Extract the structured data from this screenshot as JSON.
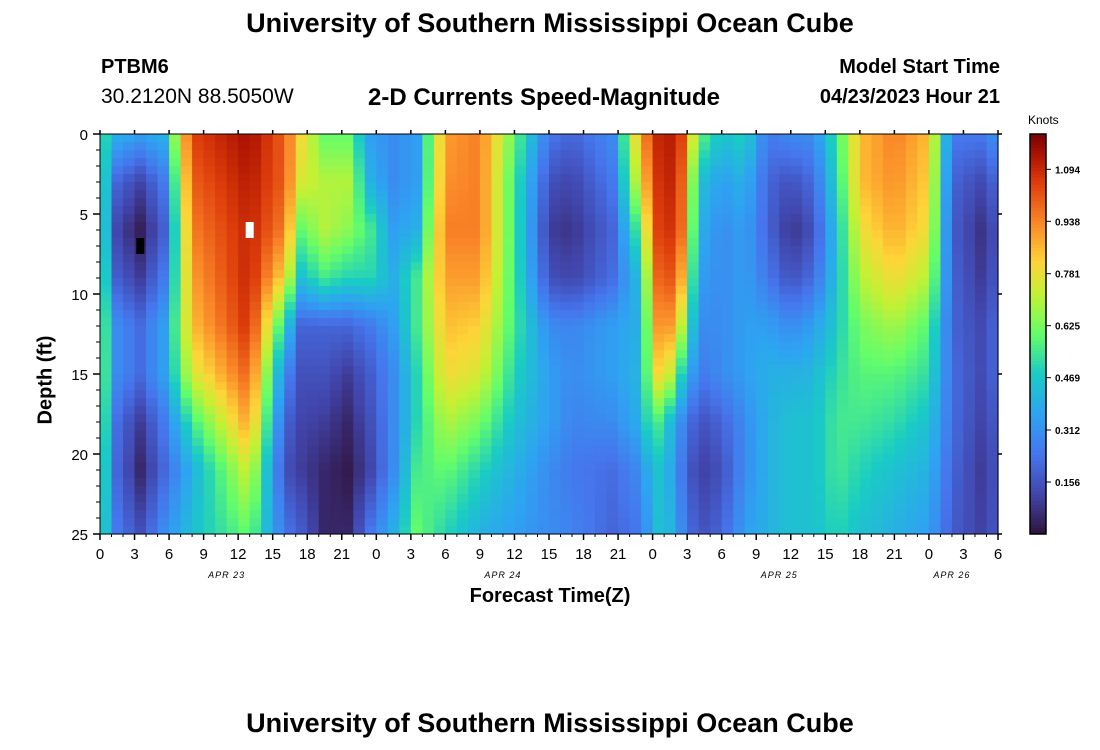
{
  "header": {
    "title": "University of Southern Mississippi Ocean Cube",
    "station": "PTBM6",
    "coords": "30.2120N  88.5050W",
    "subtitle": "2-D Currents Speed-Magnitude",
    "start_label": "Model Start Time",
    "start_value": "04/23/2023 Hour 21"
  },
  "footer": {
    "title": "University of Southern Mississippi Ocean Cube"
  },
  "chart_data": {
    "type": "heatmap",
    "title": "2-D Currents Speed-Magnitude",
    "xlabel": "Forecast Time(Z)",
    "ylabel": "Depth (ft)",
    "xlim": [
      0,
      78
    ],
    "ylim": [
      0,
      25
    ],
    "x_ticks": [
      0,
      3,
      6,
      9,
      12,
      15,
      18,
      21,
      24,
      27,
      30,
      33,
      36,
      39,
      42,
      45,
      48,
      51,
      54,
      57,
      60,
      63,
      66,
      69,
      72,
      75,
      78
    ],
    "x_tick_labels": [
      "0",
      "3",
      "6",
      "9",
      "12",
      "15",
      "18",
      "21",
      "0",
      "3",
      "6",
      "9",
      "12",
      "15",
      "18",
      "21",
      "0",
      "3",
      "6",
      "9",
      "12",
      "15",
      "18",
      "21",
      "0",
      "3",
      "6"
    ],
    "day_labels": [
      {
        "hour": 11,
        "label": "APR 23"
      },
      {
        "hour": 35,
        "label": "APR 24"
      },
      {
        "hour": 59,
        "label": "APR 25"
      },
      {
        "hour": 74,
        "label": "APR 26"
      }
    ],
    "y_ticks": [
      0,
      5,
      10,
      15,
      20,
      25
    ],
    "y_tick_labels": [
      "0",
      "5",
      "10",
      "15",
      "20",
      "25"
    ],
    "colorbar": {
      "unit": "Knots",
      "ticks": [
        0.156,
        0.312,
        0.469,
        0.625,
        0.781,
        0.938,
        1.094
      ],
      "tick_labels": [
        "0.156",
        "0.312",
        "0.469",
        "0.625",
        "0.781",
        "0.938",
        "1.094"
      ],
      "range": [
        0,
        1.2
      ]
    },
    "field": {
      "times": [
        0,
        1.5,
        3.5,
        5.5,
        8,
        13,
        16,
        17.5,
        19.5,
        21.5,
        23.5,
        25.5,
        27.5,
        30,
        33,
        36,
        39,
        41,
        44.5,
        47,
        48,
        49,
        50.5,
        52,
        54,
        56,
        58,
        60,
        62,
        64,
        66,
        69,
        72,
        74,
        77,
        78
      ],
      "depths": [
        0,
        3,
        6,
        9,
        12,
        15,
        18,
        21,
        25
      ],
      "speeds": [
        [
          0.55,
          0.58,
          0.6,
          0.62,
          0.64,
          0.65,
          0.64,
          0.6,
          0.55
        ],
        [
          0.4,
          0.2,
          0.12,
          0.18,
          0.3,
          0.3,
          0.22,
          0.2,
          0.25
        ],
        [
          0.35,
          0.12,
          0.03,
          0.1,
          0.22,
          0.22,
          0.1,
          0.05,
          0.15
        ],
        [
          0.4,
          0.25,
          0.18,
          0.25,
          0.35,
          0.35,
          0.25,
          0.2,
          0.3
        ],
        [
          1.05,
          1.0,
          0.95,
          0.9,
          0.85,
          0.75,
          0.55,
          0.4,
          0.45
        ],
        [
          1.15,
          1.12,
          1.1,
          1.1,
          1.08,
          1.0,
          0.9,
          0.75,
          0.6
        ],
        [
          1.0,
          1.0,
          0.95,
          0.8,
          0.5,
          0.3,
          0.2,
          0.15,
          0.25
        ],
        [
          0.8,
          0.75,
          0.6,
          0.45,
          0.2,
          0.15,
          0.12,
          0.1,
          0.18
        ],
        [
          0.6,
          0.7,
          0.7,
          0.55,
          0.2,
          0.15,
          0.1,
          0.05,
          0.05
        ],
        [
          0.6,
          0.7,
          0.65,
          0.5,
          0.2,
          0.1,
          0.05,
          0.02,
          0.05
        ],
        [
          0.35,
          0.4,
          0.55,
          0.5,
          0.25,
          0.18,
          0.15,
          0.12,
          0.25
        ],
        [
          0.3,
          0.3,
          0.35,
          0.4,
          0.35,
          0.3,
          0.3,
          0.3,
          0.4
        ],
        [
          0.35,
          0.35,
          0.4,
          0.55,
          0.55,
          0.5,
          0.5,
          0.55,
          0.6
        ],
        [
          0.9,
          0.92,
          0.95,
          0.9,
          0.85,
          0.8,
          0.7,
          0.6,
          0.5
        ],
        [
          0.95,
          0.95,
          0.95,
          0.9,
          0.82,
          0.75,
          0.62,
          0.5,
          0.4
        ],
        [
          0.6,
          0.55,
          0.55,
          0.55,
          0.55,
          0.5,
          0.45,
          0.4,
          0.35
        ],
        [
          0.25,
          0.15,
          0.1,
          0.15,
          0.3,
          0.35,
          0.35,
          0.3,
          0.3
        ],
        [
          0.2,
          0.12,
          0.08,
          0.12,
          0.28,
          0.3,
          0.28,
          0.25,
          0.28
        ],
        [
          0.3,
          0.25,
          0.2,
          0.22,
          0.35,
          0.35,
          0.3,
          0.22,
          0.2
        ],
        [
          0.9,
          0.8,
          0.6,
          0.45,
          0.4,
          0.42,
          0.4,
          0.3,
          0.25
        ],
        [
          1.05,
          1.0,
          0.98,
          0.9,
          0.82,
          0.75,
          0.6,
          0.45,
          0.4
        ],
        [
          1.15,
          1.15,
          1.12,
          1.08,
          1.0,
          0.85,
          0.5,
          0.45,
          0.48
        ],
        [
          1.05,
          1.0,
          0.98,
          0.88,
          0.72,
          0.5,
          0.3,
          0.25,
          0.3
        ],
        [
          0.6,
          0.45,
          0.4,
          0.35,
          0.3,
          0.25,
          0.15,
          0.1,
          0.15
        ],
        [
          0.45,
          0.35,
          0.3,
          0.3,
          0.3,
          0.3,
          0.2,
          0.15,
          0.2
        ],
        [
          0.5,
          0.4,
          0.35,
          0.35,
          0.35,
          0.35,
          0.3,
          0.3,
          0.35
        ],
        [
          0.25,
          0.2,
          0.2,
          0.25,
          0.35,
          0.4,
          0.4,
          0.4,
          0.4
        ],
        [
          0.3,
          0.15,
          0.08,
          0.15,
          0.3,
          0.4,
          0.45,
          0.45,
          0.45
        ],
        [
          0.3,
          0.22,
          0.15,
          0.22,
          0.35,
          0.42,
          0.45,
          0.45,
          0.45
        ],
        [
          0.55,
          0.5,
          0.45,
          0.45,
          0.48,
          0.52,
          0.55,
          0.55,
          0.5
        ],
        [
          0.85,
          0.85,
          0.78,
          0.7,
          0.62,
          0.58,
          0.55,
          0.5,
          0.45
        ],
        [
          0.95,
          0.92,
          0.88,
          0.8,
          0.68,
          0.58,
          0.52,
          0.45,
          0.4
        ],
        [
          0.85,
          0.82,
          0.78,
          0.7,
          0.58,
          0.52,
          0.45,
          0.4,
          0.35
        ],
        [
          0.25,
          0.2,
          0.18,
          0.2,
          0.2,
          0.22,
          0.22,
          0.2,
          0.18
        ],
        [
          0.25,
          0.12,
          0.06,
          0.08,
          0.12,
          0.12,
          0.1,
          0.08,
          0.1
        ],
        [
          0.35,
          0.25,
          0.2,
          0.22,
          0.25,
          0.25,
          0.22,
          0.2,
          0.2
        ]
      ]
    },
    "markers": [
      {
        "hour": 3.5,
        "depth": 7,
        "color": "#000000"
      },
      {
        "hour": 13,
        "depth": 6,
        "color": "#ffffff"
      }
    ]
  }
}
